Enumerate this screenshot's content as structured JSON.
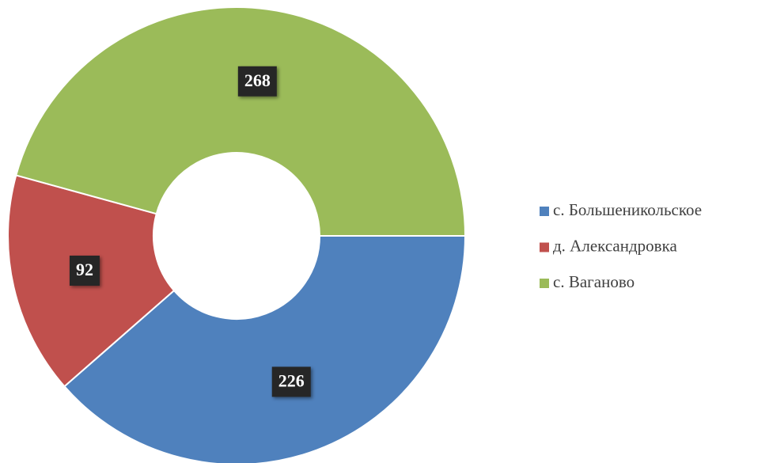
{
  "chart_data": {
    "type": "donut",
    "categories": [
      "с. Большеникольское",
      "д. Александровка",
      "с. Ваганово"
    ],
    "values": [
      226,
      92,
      268
    ],
    "colors": [
      "#4f81bd",
      "#c0504d",
      "#9bbb59"
    ],
    "legend": "right"
  }
}
